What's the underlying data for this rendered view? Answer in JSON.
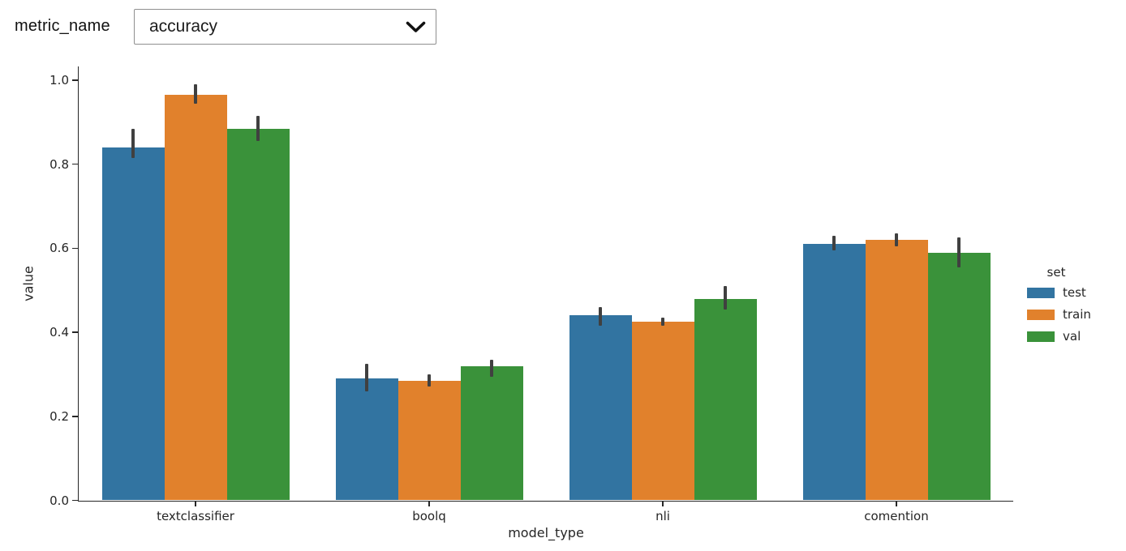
{
  "controls": {
    "label": "metric_name",
    "dropdown": {
      "value": "accuracy"
    }
  },
  "chart_data": {
    "type": "bar",
    "title": "",
    "xlabel": "model_type",
    "ylabel": "value",
    "ylim": [
      0.0,
      1.03
    ],
    "yticks": [
      0.0,
      0.2,
      0.4,
      0.6,
      0.8,
      1.0
    ],
    "grid": false,
    "categories": [
      "textclassifier",
      "boolq",
      "nli",
      "comention"
    ],
    "legend": {
      "title": "set",
      "position": "right"
    },
    "series": [
      {
        "name": "test",
        "color": "#3274a1",
        "values": [
          0.84,
          0.29,
          0.44,
          0.61
        ],
        "ci": [
          [
            0.815,
            0.885
          ],
          [
            0.26,
            0.325
          ],
          [
            0.415,
            0.46
          ],
          [
            0.595,
            0.63
          ]
        ]
      },
      {
        "name": "train",
        "color": "#e1812c",
        "values": [
          0.965,
          0.285,
          0.425,
          0.62
        ],
        "ci": [
          [
            0.945,
            0.99
          ],
          [
            0.27,
            0.3
          ],
          [
            0.415,
            0.435
          ],
          [
            0.605,
            0.635
          ]
        ]
      },
      {
        "name": "val",
        "color": "#3a923a",
        "values": [
          0.885,
          0.32,
          0.48,
          0.59
        ],
        "ci": [
          [
            0.855,
            0.915
          ],
          [
            0.295,
            0.335
          ],
          [
            0.455,
            0.51
          ],
          [
            0.555,
            0.625
          ]
        ]
      }
    ],
    "error_bar_color": "#404040"
  }
}
